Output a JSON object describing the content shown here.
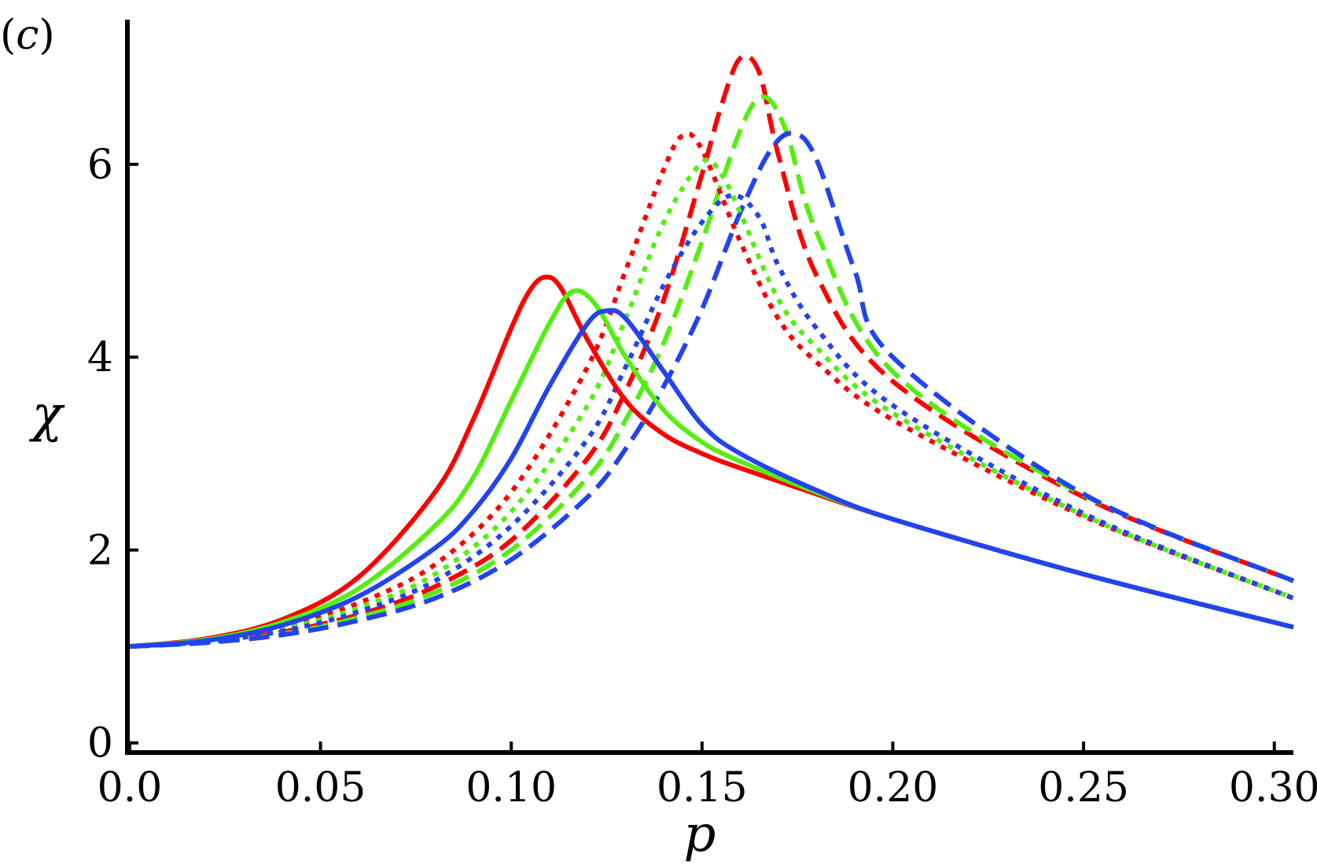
{
  "panel_label": {
    "open": "(",
    "letter": "c",
    "close": ")"
  },
  "chart_data": {
    "type": "line",
    "xlabel": "p",
    "ylabel": "χ",
    "xlim": [
      0.0,
      0.305
    ],
    "ylim": [
      -0.1,
      7.5
    ],
    "x_ticks": [
      {
        "value": 0.0,
        "label": "0.0"
      },
      {
        "value": 0.05,
        "label": "0.05"
      },
      {
        "value": 0.1,
        "label": "0.10"
      },
      {
        "value": 0.15,
        "label": "0.15"
      },
      {
        "value": 0.2,
        "label": "0.20"
      },
      {
        "value": 0.25,
        "label": "0.25"
      },
      {
        "value": 0.3,
        "label": "0.30"
      }
    ],
    "y_ticks": [
      {
        "value": 0,
        "label": "0"
      },
      {
        "value": 2,
        "label": "2"
      },
      {
        "value": 4,
        "label": "4"
      },
      {
        "value": 6,
        "label": "6"
      }
    ],
    "grid": false,
    "legend": "none",
    "series": [
      {
        "color": "#ff0000",
        "dash": "solid",
        "x": [
          0,
          0.02,
          0.04,
          0.06,
          0.08,
          0.09,
          0.1,
          0.105,
          0.109,
          0.113,
          0.12,
          0.13,
          0.14,
          0.15,
          0.16,
          0.18,
          0.2,
          0.25,
          0.305
        ],
        "y": [
          1.0,
          1.08,
          1.28,
          1.72,
          2.6,
          3.35,
          4.3,
          4.7,
          4.83,
          4.72,
          4.18,
          3.55,
          3.2,
          3.0,
          2.85,
          2.58,
          2.32,
          1.75,
          1.2
        ]
      },
      {
        "color": "#55ee11",
        "dash": "solid",
        "x": [
          0,
          0.02,
          0.04,
          0.06,
          0.08,
          0.09,
          0.1,
          0.11,
          0.116,
          0.122,
          0.13,
          0.14,
          0.15,
          0.16,
          0.18,
          0.2,
          0.25,
          0.305
        ],
        "y": [
          1.0,
          1.07,
          1.25,
          1.6,
          2.25,
          2.75,
          3.55,
          4.35,
          4.68,
          4.55,
          4.0,
          3.45,
          3.12,
          2.92,
          2.6,
          2.32,
          1.75,
          1.2
        ]
      },
      {
        "color": "#2244ee",
        "dash": "solid",
        "x": [
          0,
          0.02,
          0.04,
          0.06,
          0.08,
          0.09,
          0.1,
          0.11,
          0.12,
          0.125,
          0.13,
          0.14,
          0.15,
          0.16,
          0.18,
          0.2,
          0.25,
          0.305
        ],
        "y": [
          1.0,
          1.06,
          1.22,
          1.52,
          2.02,
          2.4,
          2.95,
          3.7,
          4.35,
          4.48,
          4.4,
          3.85,
          3.3,
          3.0,
          2.62,
          2.32,
          1.75,
          1.2
        ]
      },
      {
        "color": "#ff0000",
        "dash": "dotted",
        "x": [
          0,
          0.02,
          0.04,
          0.06,
          0.08,
          0.1,
          0.12,
          0.13,
          0.14,
          0.145,
          0.15,
          0.16,
          0.17,
          0.18,
          0.2,
          0.25,
          0.305
        ],
        "y": [
          1.0,
          1.06,
          1.2,
          1.45,
          1.85,
          2.6,
          3.9,
          4.9,
          5.95,
          6.3,
          6.15,
          5.2,
          4.4,
          3.95,
          3.35,
          2.35,
          1.5
        ]
      },
      {
        "color": "#55ee11",
        "dash": "dotted",
        "x": [
          0,
          0.02,
          0.04,
          0.06,
          0.08,
          0.1,
          0.12,
          0.13,
          0.14,
          0.15,
          0.155,
          0.16,
          0.17,
          0.18,
          0.2,
          0.25,
          0.305
        ],
        "y": [
          1.0,
          1.05,
          1.18,
          1.4,
          1.75,
          2.4,
          3.5,
          4.4,
          5.4,
          6.02,
          5.9,
          5.5,
          4.6,
          4.1,
          3.42,
          2.36,
          1.5
        ]
      },
      {
        "color": "#2244ee",
        "dash": "dotted",
        "x": [
          0,
          0.02,
          0.04,
          0.06,
          0.08,
          0.1,
          0.12,
          0.13,
          0.14,
          0.15,
          0.158,
          0.165,
          0.17,
          0.18,
          0.2,
          0.25,
          0.305
        ],
        "y": [
          1.0,
          1.05,
          1.16,
          1.36,
          1.68,
          2.25,
          3.15,
          3.9,
          4.75,
          5.4,
          5.68,
          5.45,
          4.95,
          4.3,
          3.5,
          2.38,
          1.5
        ]
      },
      {
        "color": "#ff0000",
        "dash": "dashed",
        "x": [
          0,
          0.02,
          0.04,
          0.06,
          0.08,
          0.1,
          0.12,
          0.13,
          0.14,
          0.15,
          0.155,
          0.16,
          0.165,
          0.17,
          0.18,
          0.2,
          0.25,
          0.305
        ],
        "y": [
          1.0,
          1.05,
          1.15,
          1.33,
          1.62,
          2.1,
          2.95,
          3.65,
          4.6,
          5.9,
          6.6,
          7.1,
          6.95,
          6.1,
          4.85,
          3.75,
          2.55,
          1.68
        ]
      },
      {
        "color": "#55ee11",
        "dash": "dashed",
        "x": [
          0,
          0.02,
          0.04,
          0.06,
          0.08,
          0.1,
          0.12,
          0.13,
          0.14,
          0.15,
          0.16,
          0.166,
          0.172,
          0.18,
          0.2,
          0.25,
          0.305
        ],
        "y": [
          1.0,
          1.04,
          1.13,
          1.3,
          1.56,
          2.0,
          2.75,
          3.35,
          4.15,
          5.2,
          6.35,
          6.7,
          6.35,
          5.3,
          3.85,
          2.57,
          1.68
        ]
      },
      {
        "color": "#2244ee",
        "dash": "dashed",
        "x": [
          0,
          0.02,
          0.04,
          0.06,
          0.08,
          0.1,
          0.12,
          0.13,
          0.14,
          0.15,
          0.16,
          0.168,
          0.174,
          0.18,
          0.19,
          0.2,
          0.25,
          0.305
        ],
        "y": [
          1.0,
          1.04,
          1.12,
          1.27,
          1.5,
          1.9,
          2.55,
          3.05,
          3.7,
          4.5,
          5.5,
          6.15,
          6.32,
          6.05,
          4.9,
          4.0,
          2.58,
          1.68
        ]
      }
    ]
  }
}
